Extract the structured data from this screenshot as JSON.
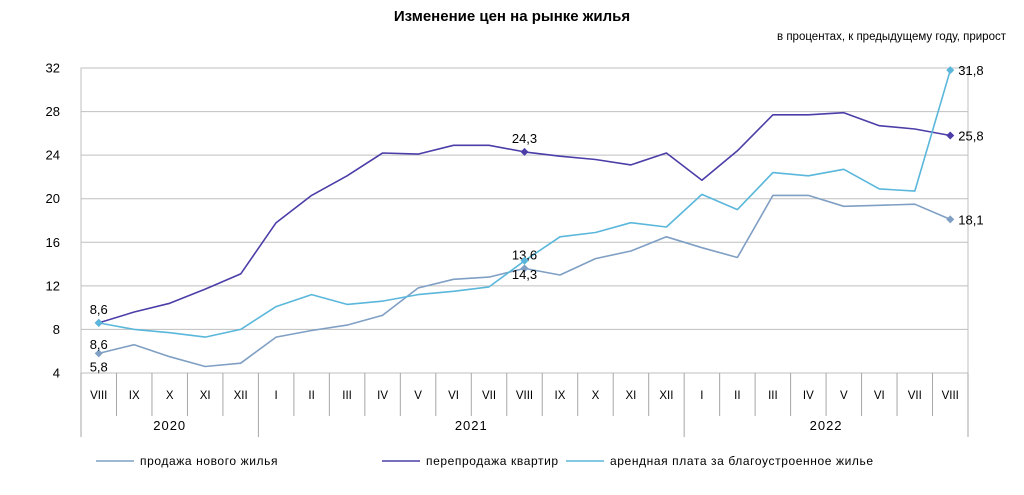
{
  "chart_data": {
    "type": "line",
    "title": "Изменение цен на рынке жилья",
    "subtitle": "в процентах, к предыдущему году, прирост",
    "xlabel": "",
    "ylabel": "",
    "ylim": [
      4,
      32
    ],
    "yticks": [
      "4",
      "8",
      "12",
      "16",
      "20",
      "24",
      "28",
      "32"
    ],
    "grid": true,
    "legend_position": "bottom",
    "categories": [
      "VIII",
      "IX",
      "X",
      "XI",
      "XII",
      "I",
      "II",
      "III",
      "IV",
      "V",
      "VI",
      "VII",
      "VIII",
      "IX",
      "X",
      "XI",
      "XII",
      "I",
      "II",
      "III",
      "IV",
      "V",
      "VI",
      "VII",
      "VIII"
    ],
    "years": [
      {
        "label": "2020",
        "start": 0,
        "end": 4
      },
      {
        "label": "2021",
        "start": 5,
        "end": 16
      },
      {
        "label": "2022",
        "start": 17,
        "end": 24
      }
    ],
    "series": [
      {
        "name": "продажа нового жилья",
        "color": "#7f9fc4",
        "values": [
          5.8,
          6.6,
          5.5,
          4.6,
          4.9,
          7.3,
          7.9,
          8.4,
          9.3,
          11.8,
          12.6,
          12.8,
          13.6,
          13.0,
          14.5,
          15.2,
          16.5,
          15.5,
          14.6,
          20.3,
          20.3,
          19.3,
          19.4,
          19.5,
          18.1
        ]
      },
      {
        "name": "перепродажа квартир",
        "color": "#4b3ea8",
        "values": [
          8.6,
          9.6,
          10.4,
          11.7,
          13.1,
          17.8,
          20.3,
          22.1,
          24.2,
          24.1,
          24.9,
          24.9,
          24.3,
          23.9,
          23.6,
          23.1,
          24.2,
          21.7,
          24.4,
          27.7,
          27.7,
          27.9,
          26.7,
          26.4,
          25.8
        ]
      },
      {
        "name": "арендная плата за благоустроенное  жилье",
        "color": "#5ab7db",
        "values": [
          8.6,
          8.0,
          7.7,
          7.3,
          8.0,
          10.1,
          11.2,
          10.3,
          10.6,
          11.2,
          11.5,
          11.9,
          14.3,
          16.5,
          16.9,
          17.8,
          17.4,
          20.4,
          19.0,
          22.4,
          22.1,
          22.7,
          20.9,
          20.7,
          31.8
        ]
      }
    ],
    "data_labels": [
      {
        "series": 0,
        "index": 0,
        "text": "5,8",
        "place": "below"
      },
      {
        "series": 1,
        "index": 0,
        "text": "8,6",
        "place": "above"
      },
      {
        "series": 2,
        "index": 0,
        "text": "8,6",
        "place": "below-far"
      },
      {
        "series": 1,
        "index": 12,
        "text": "24,3",
        "place": "above"
      },
      {
        "series": 0,
        "index": 12,
        "text": "13,6",
        "place": "above"
      },
      {
        "series": 2,
        "index": 12,
        "text": "14,3",
        "place": "below"
      },
      {
        "series": 2,
        "index": 24,
        "text": "31,8",
        "place": "right"
      },
      {
        "series": 1,
        "index": 24,
        "text": "25,8",
        "place": "right"
      },
      {
        "series": 0,
        "index": 24,
        "text": "18,1",
        "place": "right"
      }
    ]
  }
}
